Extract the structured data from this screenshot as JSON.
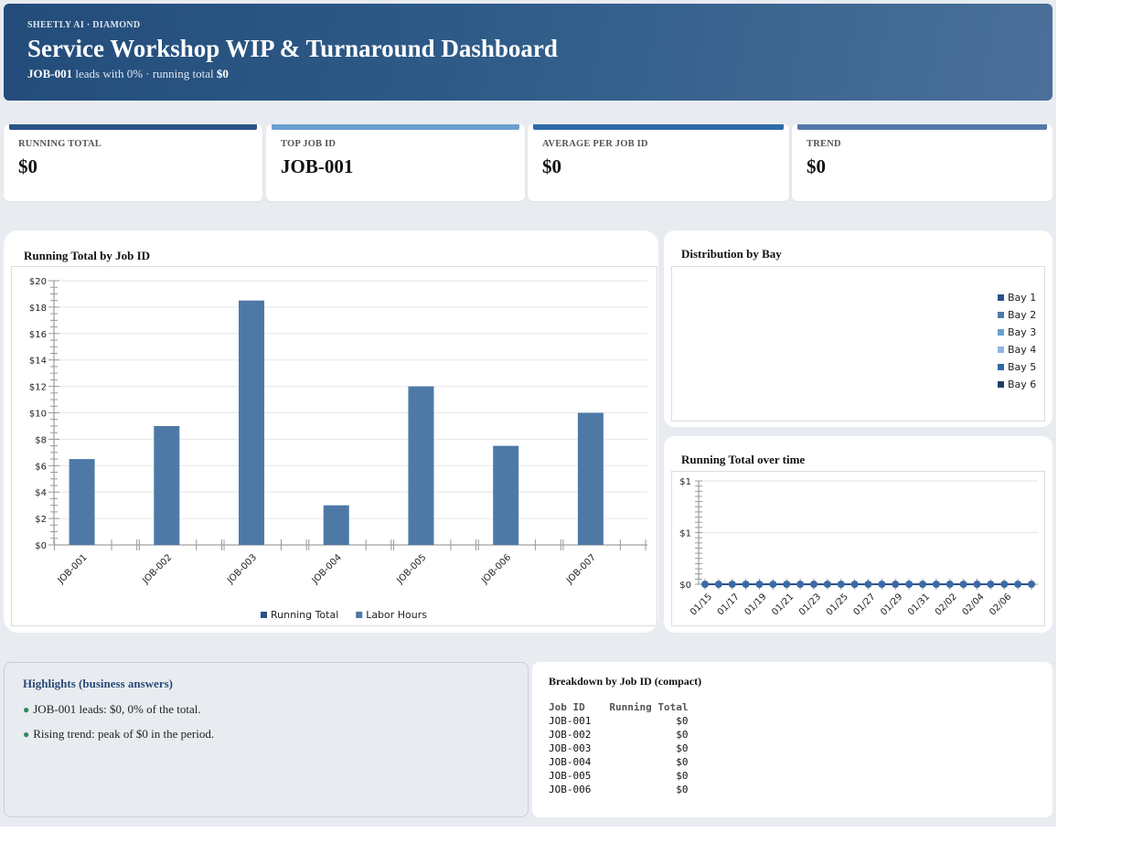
{
  "header": {
    "brand": "SHEETLY AI · DIAMOND",
    "title": "Service Workshop WIP & Turnaround Dashboard",
    "sub_lead": "JOB-001",
    "sub_mid": " leads with 0% · running total ",
    "sub_total": "$0"
  },
  "kpis": [
    {
      "label": "RUNNING TOTAL",
      "value": "$0",
      "color": "#2b5286"
    },
    {
      "label": "TOP JOB ID",
      "value": "JOB-001",
      "color": "#6a9fd0"
    },
    {
      "label": "AVERAGE PER JOB ID",
      "value": "$0",
      "color": "#2f6aa6"
    },
    {
      "label": "TREND",
      "value": "$0",
      "color": "#5578a8"
    }
  ],
  "bar_panel": {
    "title": "Running Total by Job ID"
  },
  "dist_panel": {
    "title": "Distribution by Bay"
  },
  "line_panel": {
    "title": "Running Total over time"
  },
  "highlights": {
    "title": "Highlights (business answers)",
    "items": [
      "JOB-001 leads: $0, 0% of the total.",
      "Rising trend: peak of $0 in the period."
    ]
  },
  "breakdown": {
    "title": "Breakdown by Job ID (compact)",
    "columns": [
      "Job ID",
      "Running Total"
    ],
    "rows": [
      [
        "JOB-001",
        "$0"
      ],
      [
        "JOB-002",
        "$0"
      ],
      [
        "JOB-003",
        "$0"
      ],
      [
        "JOB-004",
        "$0"
      ],
      [
        "JOB-005",
        "$0"
      ],
      [
        "JOB-006",
        "$0"
      ]
    ]
  },
  "chart_data": [
    {
      "type": "bar",
      "title": "Running Total by Job ID",
      "categories": [
        "JOB-001",
        "JOB-002",
        "JOB-003",
        "JOB-004",
        "JOB-005",
        "JOB-006",
        "JOB-007"
      ],
      "series": [
        {
          "name": "Running Total",
          "color": "#2b5286",
          "values": [
            0,
            0,
            0,
            0,
            0,
            0,
            0
          ]
        },
        {
          "name": "Labor Hours",
          "color": "#4e79a7",
          "values": [
            6.5,
            9,
            18.5,
            3,
            12,
            7.5,
            10
          ]
        }
      ],
      "ylim": [
        0,
        20
      ],
      "yticks": [
        "$0",
        "$2",
        "$4",
        "$6",
        "$8",
        "$10",
        "$12",
        "$14",
        "$16",
        "$18",
        "$20"
      ],
      "legend": "bottom",
      "grid": true
    },
    {
      "type": "pie",
      "title": "Distribution by Bay",
      "categories": [
        "Bay 1",
        "Bay 2",
        "Bay 3",
        "Bay 4",
        "Bay 5",
        "Bay 6"
      ],
      "colors": [
        "#2b5286",
        "#4e79a7",
        "#6a9fd0",
        "#8fb6dc",
        "#2f6aa6",
        "#1f3f66"
      ],
      "values": [
        0,
        0,
        0,
        0,
        0,
        0
      ],
      "legend": "right"
    },
    {
      "type": "line",
      "title": "Running Total over time",
      "x": [
        "2025-01-15",
        "2025-01-16",
        "2025-01-17",
        "2025-01-18",
        "2025-01-19",
        "2025-01-20",
        "2025-01-21",
        "2025-01-22",
        "2025-01-23",
        "2025-01-24",
        "2025-01-25",
        "2025-01-26",
        "2025-01-27",
        "2025-01-28",
        "2025-01-29",
        "2025-01-30",
        "2025-01-31",
        "2025-02-01",
        "2025-02-02",
        "2025-02-03",
        "2025-02-04",
        "2025-02-05",
        "2025-02-06",
        "2025-02-07",
        "2025-02-08"
      ],
      "xticks": [
        "01/15",
        "01/17",
        "01/19",
        "01/21",
        "01/23",
        "01/25",
        "01/27",
        "01/29",
        "01/31",
        "02/02",
        "02/04",
        "02/06"
      ],
      "series": [
        {
          "name": "Running Total",
          "color": "#2b5286",
          "values": [
            0,
            0,
            0,
            0,
            0,
            0,
            0,
            0,
            0,
            0,
            0,
            0,
            0,
            0,
            0,
            0,
            0,
            0,
            0,
            0,
            0,
            0,
            0,
            0,
            0
          ]
        }
      ],
      "ylim": [
        0,
        1
      ],
      "yticks": [
        "$0",
        "$1",
        "$1"
      ],
      "grid": true
    }
  ]
}
